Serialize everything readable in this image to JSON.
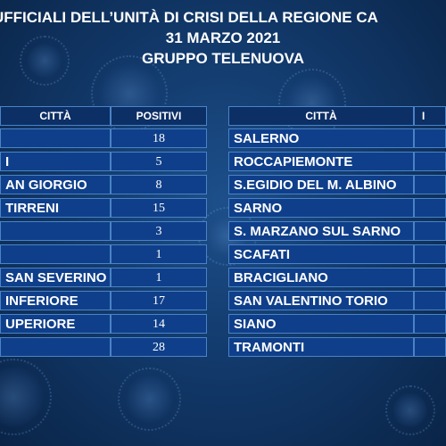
{
  "header": {
    "line1": "UFFICIALI DELL’UNITÀ DI CRISI DELLA REGIONE CA",
    "line2": "31 MARZO 2021",
    "line3": "GRUPPO TELENUOVA"
  },
  "left_table": {
    "col_city": "CITTÀ",
    "col_pos": "POSITIVI",
    "rows": [
      {
        "city": "",
        "pos": "18"
      },
      {
        "city": "I",
        "pos": "5"
      },
      {
        "city": "AN GIORGIO",
        "pos": "8"
      },
      {
        "city": "TIRRENI",
        "pos": "15"
      },
      {
        "city": "",
        "pos": "3"
      },
      {
        "city": "",
        "pos": "1"
      },
      {
        "city": "SAN SEVERINO",
        "pos": "1"
      },
      {
        "city": "INFERIORE",
        "pos": "17"
      },
      {
        "city": "UPERIORE",
        "pos": "14"
      },
      {
        "city": "",
        "pos": "28"
      }
    ]
  },
  "right_table": {
    "col_city": "CITTÀ",
    "col_pos": "I",
    "rows": [
      {
        "city": "SALERNO",
        "pos": ""
      },
      {
        "city": "ROCCAPIEMONTE",
        "pos": ""
      },
      {
        "city": "S.EGIDIO DEL M. ALBINO",
        "pos": ""
      },
      {
        "city": "SARNO",
        "pos": ""
      },
      {
        "city": "S. MARZANO SUL SARNO",
        "pos": ""
      },
      {
        "city": "SCAFATI",
        "pos": ""
      },
      {
        "city": "BRACIGLIANO",
        "pos": ""
      },
      {
        "city": "SAN VALENTINO TORIO",
        "pos": ""
      },
      {
        "city": "SIANO",
        "pos": ""
      },
      {
        "city": "TRAMONTI",
        "pos": ""
      }
    ]
  }
}
